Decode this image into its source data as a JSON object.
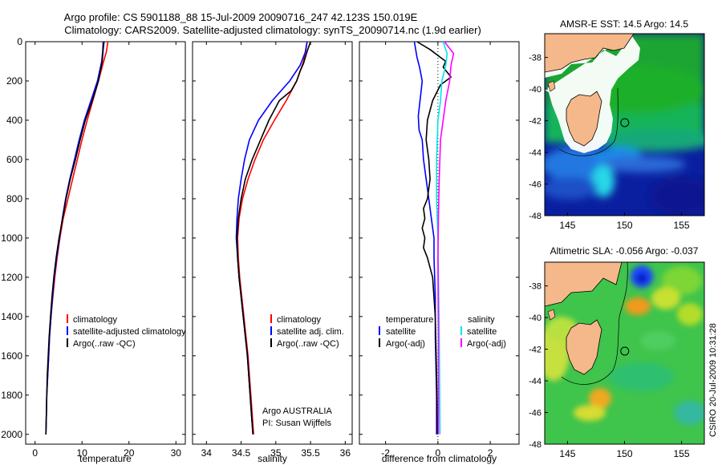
{
  "header": {
    "title_line1": "Argo profile: CS 5901188_88 15-Jul-2009 20090716_247 42.123S 150.019E",
    "title_line2": "Climatology: CARS2009. Satellite-adjusted climatology: synTS_20090714.nc (1.9d earlier)"
  },
  "timestamp": "CSIRO 20-Jul-2009 10:31:28",
  "colors": {
    "climatology": "#ff0000",
    "satellite": "#0000ff",
    "argo": "#000000",
    "salinity_satellite": "#00e5ee",
    "salinity_argo": "#ff00ff",
    "land": "#f5b88a",
    "coast": "#000000"
  },
  "chart_data": [
    {
      "id": "temperature",
      "type": "line",
      "xlabel": "temperature",
      "ylabel": "",
      "xlim": [
        -2,
        32
      ],
      "ylim": [
        0,
        2050
      ],
      "y_inverted": true,
      "xticks": [
        0,
        10,
        20,
        30
      ],
      "yticks": [
        0,
        200,
        400,
        600,
        800,
        1000,
        1200,
        1400,
        1600,
        1800,
        2000
      ],
      "legend": {
        "placement": "lower-right",
        "labels": [
          "climatology",
          "satellite-adjusted climatology",
          "Argo(..raw -QC)"
        ]
      },
      "series": [
        {
          "name": "climatology",
          "color": "#ff0000",
          "points": [
            [
              15.5,
              0
            ],
            [
              15.2,
              50
            ],
            [
              14.6,
              100
            ],
            [
              13.5,
              200
            ],
            [
              12.3,
              300
            ],
            [
              11.1,
              400
            ],
            [
              10.0,
              500
            ],
            [
              9.0,
              600
            ],
            [
              8.0,
              700
            ],
            [
              7.0,
              800
            ],
            [
              6.0,
              900
            ],
            [
              5.3,
              1000
            ],
            [
              4.7,
              1100
            ],
            [
              4.2,
              1200
            ],
            [
              3.8,
              1300
            ],
            [
              3.4,
              1400
            ],
            [
              3.1,
              1500
            ],
            [
              2.9,
              1600
            ],
            [
              2.7,
              1700
            ],
            [
              2.5,
              1800
            ],
            [
              2.4,
              1900
            ],
            [
              2.3,
              2000
            ]
          ]
        },
        {
          "name": "satellite-adjusted climatology",
          "color": "#0000ff",
          "points": [
            [
              14.5,
              0
            ],
            [
              14.4,
              50
            ],
            [
              14.2,
              100
            ],
            [
              13.3,
              200
            ],
            [
              11.9,
              300
            ],
            [
              10.5,
              400
            ],
            [
              9.4,
              500
            ],
            [
              8.4,
              600
            ],
            [
              7.4,
              700
            ],
            [
              6.5,
              800
            ],
            [
              5.8,
              900
            ],
            [
              5.2,
              1000
            ],
            [
              4.6,
              1100
            ],
            [
              4.1,
              1200
            ],
            [
              3.7,
              1300
            ],
            [
              3.4,
              1400
            ],
            [
              3.1,
              1500
            ],
            [
              2.9,
              1600
            ],
            [
              2.7,
              1700
            ],
            [
              2.5,
              1800
            ],
            [
              2.4,
              1900
            ],
            [
              2.3,
              2000
            ]
          ]
        },
        {
          "name": "Argo(..raw -QC)",
          "color": "#000000",
          "points": [
            [
              14.7,
              0
            ],
            [
              14.5,
              40
            ],
            [
              14.3,
              100
            ],
            [
              13.5,
              200
            ],
            [
              12.2,
              300
            ],
            [
              10.7,
              400
            ],
            [
              9.6,
              500
            ],
            [
              8.6,
              600
            ],
            [
              7.5,
              700
            ],
            [
              6.6,
              800
            ],
            [
              5.9,
              900
            ],
            [
              5.1,
              1000
            ],
            [
              4.5,
              1100
            ],
            [
              4.0,
              1200
            ],
            [
              3.6,
              1300
            ],
            [
              3.3,
              1400
            ],
            [
              3.0,
              1500
            ],
            [
              2.8,
              1600
            ],
            [
              2.6,
              1700
            ],
            [
              2.5,
              1800
            ],
            [
              2.4,
              1900
            ],
            [
              2.3,
              2000
            ]
          ]
        }
      ]
    },
    {
      "id": "salinity",
      "type": "line",
      "xlabel": "salinity",
      "ylabel": "",
      "xlim": [
        33.8,
        36.1
      ],
      "ylim": [
        0,
        2050
      ],
      "y_inverted": true,
      "xticks": [
        34,
        34.5,
        35,
        35.5,
        36
      ],
      "xticklabels": [
        "34",
        "34.5",
        "35",
        "35.5",
        "36"
      ],
      "legend": {
        "placement": "lower-right",
        "labels": [
          "climatology",
          "satellite adj. clim.",
          "Argo(..raw -QC)"
        ]
      },
      "annotation": [
        "Argo AUSTRALIA",
        "PI: Susan Wijffels"
      ],
      "series": [
        {
          "name": "climatology",
          "color": "#ff0000",
          "points": [
            [
              35.45,
              0
            ],
            [
              35.4,
              100
            ],
            [
              35.3,
              200
            ],
            [
              35.15,
              300
            ],
            [
              34.98,
              400
            ],
            [
              34.82,
              500
            ],
            [
              34.7,
              600
            ],
            [
              34.6,
              700
            ],
            [
              34.52,
              800
            ],
            [
              34.47,
              900
            ],
            [
              34.45,
              1000
            ],
            [
              34.46,
              1100
            ],
            [
              34.48,
              1200
            ],
            [
              34.51,
              1300
            ],
            [
              34.54,
              1400
            ],
            [
              34.57,
              1500
            ],
            [
              34.6,
              1600
            ],
            [
              34.62,
              1700
            ],
            [
              34.64,
              1800
            ],
            [
              34.66,
              1900
            ],
            [
              34.68,
              2000
            ]
          ]
        },
        {
          "name": "satellite adj. clim.",
          "color": "#0000ff",
          "points": [
            [
              35.45,
              0
            ],
            [
              35.43,
              50
            ],
            [
              35.35,
              120
            ],
            [
              35.2,
              200
            ],
            [
              34.95,
              300
            ],
            [
              34.75,
              400
            ],
            [
              34.62,
              500
            ],
            [
              34.55,
              600
            ],
            [
              34.5,
              700
            ],
            [
              34.46,
              800
            ],
            [
              34.44,
              900
            ],
            [
              34.43,
              1000
            ],
            [
              34.45,
              1100
            ],
            [
              34.47,
              1200
            ],
            [
              34.5,
              1300
            ],
            [
              34.53,
              1400
            ],
            [
              34.56,
              1500
            ],
            [
              34.59,
              1600
            ],
            [
              34.61,
              1700
            ],
            [
              34.63,
              1800
            ],
            [
              34.65,
              1900
            ],
            [
              34.67,
              2000
            ]
          ]
        },
        {
          "name": "Argo(..raw -QC)",
          "color": "#000000",
          "points": [
            [
              35.5,
              0
            ],
            [
              35.45,
              50
            ],
            [
              35.4,
              110
            ],
            [
              35.35,
              150
            ],
            [
              35.3,
              200
            ],
            [
              35.22,
              250
            ],
            [
              35.05,
              300
            ],
            [
              34.9,
              400
            ],
            [
              34.78,
              500
            ],
            [
              34.66,
              600
            ],
            [
              34.56,
              700
            ],
            [
              34.5,
              800
            ],
            [
              34.46,
              900
            ],
            [
              34.44,
              1000
            ],
            [
              34.45,
              1100
            ],
            [
              34.47,
              1200
            ],
            [
              34.5,
              1300
            ],
            [
              34.53,
              1400
            ],
            [
              34.56,
              1500
            ],
            [
              34.59,
              1600
            ],
            [
              34.61,
              1700
            ],
            [
              34.63,
              1800
            ],
            [
              34.65,
              1900
            ],
            [
              34.67,
              2000
            ]
          ]
        }
      ]
    },
    {
      "id": "difference",
      "type": "line",
      "xlabel": "difference from climatology",
      "ylabel": "",
      "xlim": [
        -3,
        3.1
      ],
      "ylim": [
        0,
        2050
      ],
      "y_inverted": true,
      "xticks": [
        -2,
        0,
        2
      ],
      "zero_line": "dotted",
      "legend": {
        "placement": "lower-right",
        "temperature_header": "temperature",
        "salinity_header": "salinity",
        "labels": [
          "satellite",
          "Argo(-adj)",
          "satellite",
          "Argo(-adj)"
        ]
      },
      "series": [
        {
          "name": "temperature satellite",
          "color": "#0000ff",
          "points": [
            [
              -0.9,
              0
            ],
            [
              -0.8,
              80
            ],
            [
              -0.7,
              130
            ],
            [
              -0.6,
              200
            ],
            [
              -0.65,
              260
            ],
            [
              -0.7,
              320
            ],
            [
              -0.75,
              380
            ],
            [
              -0.72,
              450
            ],
            [
              -0.6,
              500
            ],
            [
              -0.55,
              600
            ],
            [
              -0.45,
              700
            ],
            [
              -0.35,
              800
            ],
            [
              -0.25,
              900
            ],
            [
              -0.15,
              1000
            ],
            [
              -0.15,
              1100
            ],
            [
              -0.1,
              1300
            ],
            [
              -0.1,
              1500
            ],
            [
              -0.05,
              1800
            ],
            [
              -0.05,
              2000
            ]
          ]
        },
        {
          "name": "temperature Argo(-adj)",
          "color": "#000000",
          "points": [
            [
              -0.8,
              0
            ],
            [
              -0.3,
              40
            ],
            [
              0.1,
              80
            ],
            [
              0.3,
              100
            ],
            [
              0.2,
              130
            ],
            [
              0.5,
              180
            ],
            [
              0.1,
              220
            ],
            [
              -0.2,
              300
            ],
            [
              -0.4,
              400
            ],
            [
              -0.45,
              500
            ],
            [
              -0.35,
              600
            ],
            [
              -0.3,
              700
            ],
            [
              -0.4,
              800
            ],
            [
              -0.55,
              850
            ],
            [
              -0.5,
              900
            ],
            [
              -0.6,
              950
            ],
            [
              -0.5,
              1000
            ],
            [
              -0.55,
              1050
            ],
            [
              -0.4,
              1100
            ],
            [
              -0.2,
              1200
            ],
            [
              -0.1,
              1400
            ],
            [
              -0.05,
              1700
            ],
            [
              -0.02,
              2000
            ]
          ]
        },
        {
          "name": "salinity satellite",
          "color": "#00e5ee",
          "points": [
            [
              0.2,
              0
            ],
            [
              0.35,
              60
            ],
            [
              0.3,
              120
            ],
            [
              0.15,
              200
            ],
            [
              0.1,
              300
            ],
            [
              0.0,
              400
            ],
            [
              -0.05,
              600
            ],
            [
              -0.05,
              800
            ],
            [
              0.0,
              1000
            ],
            [
              0.05,
              1500
            ],
            [
              0.08,
              2000
            ]
          ]
        },
        {
          "name": "salinity Argo(-adj)",
          "color": "#ff00ff",
          "points": [
            [
              0.25,
              0
            ],
            [
              0.6,
              60
            ],
            [
              0.5,
              120
            ],
            [
              0.45,
              200
            ],
            [
              0.3,
              300
            ],
            [
              0.2,
              400
            ],
            [
              0.1,
              500
            ],
            [
              0.05,
              700
            ],
            [
              0.02,
              900
            ],
            [
              0.0,
              1100
            ],
            [
              0.02,
              1500
            ],
            [
              0.02,
              2000
            ]
          ]
        }
      ]
    },
    {
      "id": "sst_map",
      "type": "heatmap",
      "title": "AMSR-E SST: 14.5 Argo: 14.5",
      "xlim": [
        143,
        157
      ],
      "ylim": [
        -48,
        -36.5
      ],
      "xticks": [
        145,
        150,
        155
      ],
      "yticks": [
        -38,
        -40,
        -42,
        -44,
        -46,
        -48
      ],
      "marker": {
        "lon": 150.019,
        "lat": -42.123
      }
    },
    {
      "id": "sla_map",
      "type": "heatmap",
      "title": "Altimetric SLA: -0.056 Argo: -0.037",
      "xlim": [
        143,
        157
      ],
      "ylim": [
        -48,
        -36.5
      ],
      "xticks": [
        145,
        150,
        155
      ],
      "yticks": [
        -38,
        -40,
        -42,
        -44,
        -46,
        -48
      ],
      "marker": {
        "lon": 150.019,
        "lat": -42.123
      }
    }
  ]
}
